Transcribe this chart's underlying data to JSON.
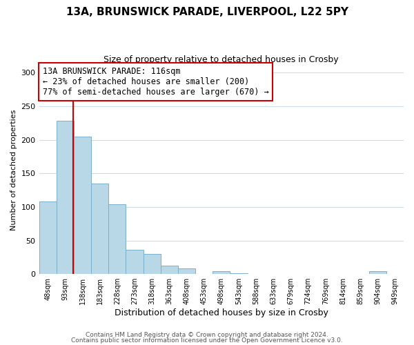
{
  "title_line1": "13A, BRUNSWICK PARADE, LIVERPOOL, L22 5PY",
  "title_line2": "Size of property relative to detached houses in Crosby",
  "xlabel": "Distribution of detached houses by size in Crosby",
  "ylabel": "Number of detached properties",
  "bin_labels": [
    "48sqm",
    "93sqm",
    "138sqm",
    "183sqm",
    "228sqm",
    "273sqm",
    "318sqm",
    "363sqm",
    "408sqm",
    "453sqm",
    "498sqm",
    "543sqm",
    "588sqm",
    "633sqm",
    "679sqm",
    "724sqm",
    "769sqm",
    "814sqm",
    "859sqm",
    "904sqm",
    "949sqm"
  ],
  "bar_values": [
    108,
    228,
    205,
    135,
    104,
    36,
    30,
    13,
    8,
    0,
    4,
    1,
    0,
    0,
    0,
    0,
    0,
    0,
    0,
    4,
    0
  ],
  "bar_color": "#b8d8e8",
  "bar_edge_color": "#7ab0cc",
  "red_line_color": "#cc0000",
  "annotation_line1": "13A BRUNSWICK PARADE: 116sqm",
  "annotation_line2": "← 23% of detached houses are smaller (200)",
  "annotation_line3": "77% of semi-detached houses are larger (670) →",
  "annotation_box_color": "#ffffff",
  "annotation_box_edge": "#cc0000",
  "ylim": [
    0,
    310
  ],
  "yticks": [
    0,
    50,
    100,
    150,
    200,
    250,
    300
  ],
  "footer_line1": "Contains HM Land Registry data © Crown copyright and database right 2024.",
  "footer_line2": "Contains public sector information licensed under the Open Government Licence v3.0.",
  "background_color": "#ffffff",
  "grid_color": "#ccdde8"
}
